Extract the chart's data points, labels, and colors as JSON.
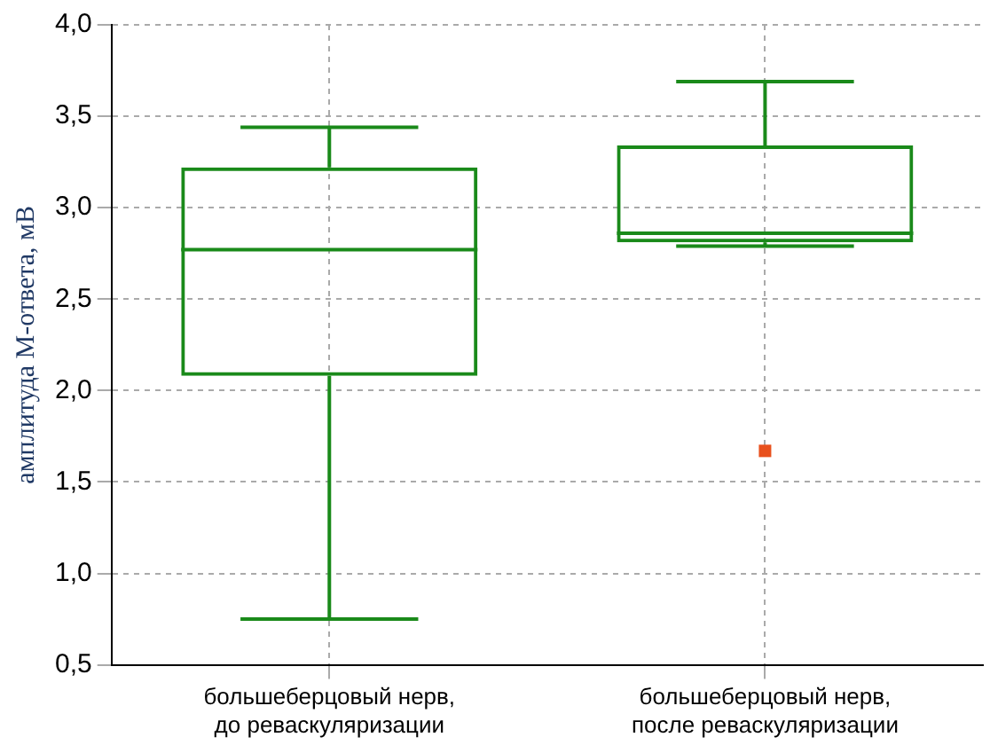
{
  "chart_data": {
    "type": "box",
    "ylabel": "амплитуда М-ответа, мВ",
    "categories": [
      "большеберцовый нерв,\nдо реваскуляризации",
      "большеберцовый нерв,\nпосле реваскуляризации"
    ],
    "series": [
      {
        "color": "#1a8a1a",
        "boxes": [
          {
            "low": 0.75,
            "q1": 2.08,
            "median": 2.77,
            "q3": 3.22,
            "high": 3.44
          },
          {
            "low": 2.79,
            "q1": 2.81,
            "median": 2.86,
            "q3": 3.34,
            "high": 3.69
          }
        ]
      },
      {
        "type": "scatter",
        "color": "#e8501c",
        "marker": "square",
        "x": [
          "большеберцовый нерв,\nпосле реваскуляризации"
        ],
        "values": [
          1.67
        ]
      }
    ],
    "ylim": [
      0.5,
      4.0
    ],
    "yticks": [
      {
        "value": 0.5,
        "label": "0,5"
      },
      {
        "value": 1.0,
        "label": "1,0"
      },
      {
        "value": 1.5,
        "label": "1,5"
      },
      {
        "value": 2.0,
        "label": "2,0"
      },
      {
        "value": 2.5,
        "label": "2,5"
      },
      {
        "value": 3.0,
        "label": "3,0"
      },
      {
        "value": 3.5,
        "label": "3,5"
      },
      {
        "value": 4.0,
        "label": "4,0"
      }
    ],
    "grid": true,
    "legend": false
  }
}
